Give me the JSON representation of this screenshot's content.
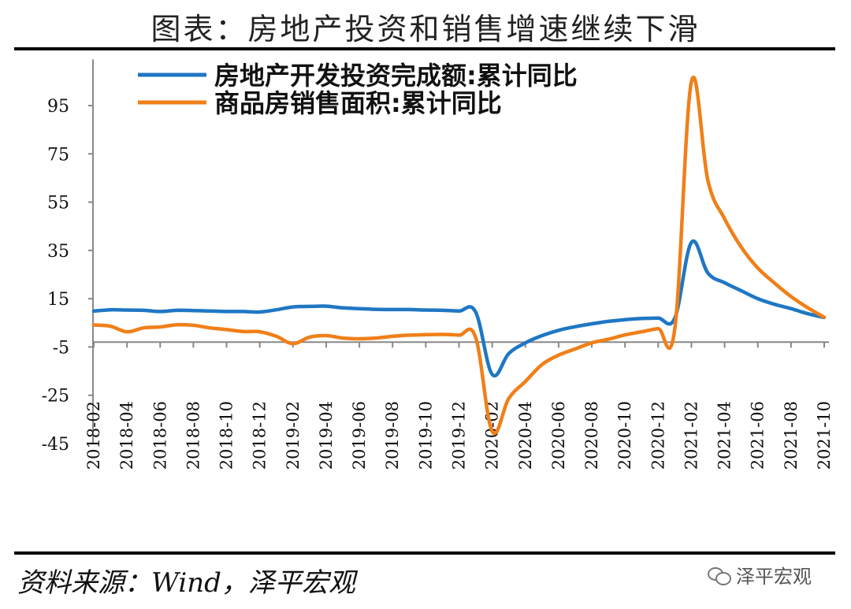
{
  "title": "图表：房地产投资和销售增速继续下滑",
  "source": "资料来源：Wind，泽平宏观",
  "watermark": "泽平宏观",
  "chart_data": {
    "type": "line",
    "ylim": [
      -45,
      105
    ],
    "yticks": [
      95,
      75,
      55,
      35,
      15,
      -5,
      -25,
      -45
    ],
    "xtick_labels": [
      "2018-02",
      "2018-04",
      "2018-06",
      "2018-08",
      "2018-10",
      "2018-12",
      "2019-02",
      "2019-04",
      "2019-06",
      "2019-08",
      "2019-10",
      "2019-12",
      "2020-02",
      "2020-04",
      "2020-06",
      "2020-08",
      "2020-10",
      "2020-12",
      "2021-02",
      "2021-04",
      "2021-06",
      "2021-08",
      "2021-10"
    ],
    "x": [
      "2018-02",
      "2018-03",
      "2018-04",
      "2018-05",
      "2018-06",
      "2018-07",
      "2018-08",
      "2018-09",
      "2018-10",
      "2018-11",
      "2018-12",
      "2019-01",
      "2019-02",
      "2019-03",
      "2019-04",
      "2019-05",
      "2019-06",
      "2019-07",
      "2019-08",
      "2019-09",
      "2019-10",
      "2019-11",
      "2019-12",
      "2020-01",
      "2020-02",
      "2020-03",
      "2020-04",
      "2020-05",
      "2020-06",
      "2020-07",
      "2020-08",
      "2020-09",
      "2020-10",
      "2020-11",
      "2020-12",
      "2021-01",
      "2021-02",
      "2021-03",
      "2021-04",
      "2021-05",
      "2021-06",
      "2021-07",
      "2021-08",
      "2021-09",
      "2021-10"
    ],
    "legend_position": "top",
    "series": [
      {
        "name": "房地产开发投资完成额:累计同比",
        "color": "#1F77C4",
        "values": [
          9.9,
          10.4,
          10.3,
          10.2,
          9.7,
          10.2,
          10.1,
          9.9,
          9.7,
          9.7,
          9.5,
          10.4,
          11.6,
          11.8,
          11.9,
          11.2,
          10.9,
          10.6,
          10.5,
          10.5,
          10.3,
          10.2,
          9.9,
          9.5,
          -16.3,
          -7.7,
          -3.3,
          -0.3,
          1.9,
          3.4,
          4.6,
          5.6,
          6.3,
          6.8,
          7.0,
          7.0,
          38.3,
          25.6,
          21.6,
          18.3,
          15.0,
          12.7,
          10.9,
          8.8,
          7.2
        ]
      },
      {
        "name": "商品房销售面积:累计同比",
        "color": "#F07F19",
        "values": [
          4.1,
          3.6,
          1.3,
          2.9,
          3.3,
          4.2,
          4.0,
          2.9,
          2.2,
          1.4,
          1.3,
          -0.6,
          -3.6,
          -0.9,
          -0.3,
          -1.3,
          -1.6,
          -1.3,
          -0.6,
          -0.1,
          0.1,
          0.2,
          -0.1,
          -1.0,
          -39.9,
          -26.3,
          -19.3,
          -12.3,
          -8.4,
          -5.8,
          -3.3,
          -1.8,
          0.0,
          1.3,
          2.6,
          2.6,
          104.9,
          63.8,
          48.1,
          36.4,
          27.7,
          21.5,
          15.9,
          11.3,
          7.3
        ]
      }
    ]
  }
}
